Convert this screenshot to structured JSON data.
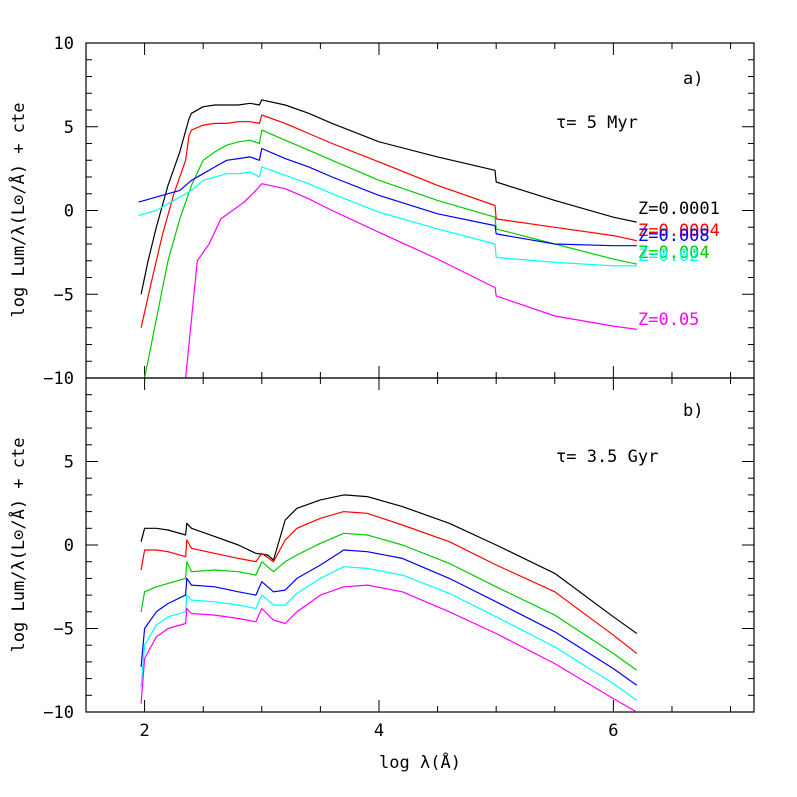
{
  "chart_data": {
    "type": "line",
    "xlabel": "log λ(Å)",
    "ylabel": "log Lum/λ(L⊙/Å) + cte",
    "xlim": [
      1.5,
      7.2
    ],
    "x_ticks": [
      2,
      4,
      6
    ],
    "y_ticks": [
      -10,
      -5,
      0,
      5,
      10
    ],
    "colors": {
      "Z=0.0001": "#000000",
      "Z=0.0004": "#ff0000",
      "Z=0.004": "#00cc00",
      "Z=0.008": "#0000ff",
      "Z=0.02": "#00ffff",
      "Z=0.05": "#ff00ff"
    },
    "panels": [
      {
        "id": "a",
        "panel_label": "a)",
        "age_label": "τ= 5 Myr",
        "ylim": [
          -10,
          10
        ],
        "y_tick_labels": [
          "−10",
          "−5",
          "0",
          "5",
          "10"
        ],
        "series": [
          {
            "name": "Z=0.0001",
            "color": "#000000",
            "label": "Z=0.0001",
            "x": [
              1.97,
              2.03,
              2.1,
              2.2,
              2.3,
              2.38,
              2.4,
              2.5,
              2.6,
              2.7,
              2.8,
              2.9,
              2.98,
              3.0,
              3.2,
              3.4,
              3.6,
              4.0,
              4.5,
              4.99,
              5.0,
              5.5,
              6.0,
              6.2
            ],
            "y": [
              -5.0,
              -3.0,
              -1.0,
              1.5,
              3.5,
              5.5,
              5.8,
              6.2,
              6.3,
              6.3,
              6.3,
              6.4,
              6.3,
              6.6,
              6.3,
              5.8,
              5.2,
              4.1,
              3.2,
              2.4,
              1.7,
              0.6,
              -0.4,
              -0.7
            ]
          },
          {
            "name": "Z=0.0004",
            "color": "#ff0000",
            "label": "Z=0.0004",
            "x": [
              1.97,
              2.05,
              2.15,
              2.25,
              2.35,
              2.38,
              2.4,
              2.5,
              2.6,
              2.7,
              2.8,
              2.9,
              2.98,
              3.0,
              3.2,
              3.4,
              3.6,
              4.0,
              4.5,
              4.99,
              5.0,
              5.5,
              6.0,
              6.2
            ],
            "y": [
              -7.0,
              -4.5,
              -1.5,
              1.0,
              3.0,
              4.5,
              4.8,
              5.1,
              5.2,
              5.2,
              5.3,
              5.3,
              5.2,
              5.7,
              5.2,
              4.6,
              4.0,
              2.9,
              1.5,
              0.3,
              -0.5,
              -1.0,
              -1.5,
              -1.8
            ]
          },
          {
            "name": "Z=0.004",
            "color": "#00cc00",
            "label": "Z=0.004",
            "x": [
              2.0,
              2.1,
              2.2,
              2.3,
              2.4,
              2.5,
              2.6,
              2.7,
              2.8,
              2.9,
              2.98,
              3.0,
              3.2,
              3.4,
              3.6,
              4.0,
              4.5,
              4.99,
              5.0,
              5.5,
              6.0,
              6.2
            ],
            "y": [
              -10.0,
              -6.5,
              -3.0,
              -0.5,
              1.5,
              3.0,
              3.5,
              3.9,
              4.1,
              4.2,
              4.0,
              4.8,
              4.2,
              3.6,
              3.0,
              1.8,
              0.6,
              -0.4,
              -1.1,
              -2.0,
              -2.9,
              -3.2
            ]
          },
          {
            "name": "Z=0.008",
            "color": "#0000ff",
            "label": "Z=0.008",
            "x": [
              1.95,
              2.1,
              2.2,
              2.3,
              2.4,
              2.5,
              2.6,
              2.7,
              2.8,
              2.9,
              2.98,
              3.0,
              3.2,
              3.4,
              3.6,
              4.0,
              4.5,
              4.99,
              5.0,
              5.5,
              6.0,
              6.2
            ],
            "y": [
              0.5,
              0.8,
              1.0,
              1.2,
              1.8,
              2.2,
              2.6,
              3.0,
              3.1,
              3.2,
              3.0,
              3.7,
              3.1,
              2.6,
              2.0,
              0.9,
              -0.2,
              -0.9,
              -1.4,
              -2.0,
              -2.1,
              -2.1
            ]
          },
          {
            "name": "Z=0.02",
            "color": "#00ffff",
            "label": "Z=0.02",
            "x": [
              1.95,
              2.0,
              2.1,
              2.2,
              2.3,
              2.4,
              2.5,
              2.6,
              2.7,
              2.8,
              2.9,
              2.98,
              3.0,
              3.2,
              3.4,
              3.6,
              4.0,
              4.5,
              4.99,
              5.0,
              5.5,
              6.0,
              6.2
            ],
            "y": [
              -0.3,
              -0.2,
              0.0,
              0.4,
              0.8,
              1.2,
              1.8,
              2.0,
              2.2,
              2.2,
              2.3,
              2.0,
              2.6,
              2.1,
              1.6,
              1.0,
              -0.1,
              -1.1,
              -2.0,
              -2.8,
              -3.1,
              -3.3,
              -3.3
            ]
          },
          {
            "name": "Z=0.05",
            "color": "#ff00ff",
            "label": "Z=0.05",
            "x": [
              2.35,
              2.45,
              2.55,
              2.65,
              2.75,
              2.85,
              2.95,
              3.0,
              3.2,
              3.4,
              3.6,
              4.0,
              4.5,
              4.99,
              5.0,
              5.5,
              6.0,
              6.2
            ],
            "y": [
              -10.0,
              -3.0,
              -2.0,
              -0.5,
              0.0,
              0.5,
              1.2,
              1.6,
              1.3,
              0.7,
              0.0,
              -1.3,
              -2.9,
              -4.6,
              -5.1,
              -6.3,
              -6.9,
              -7.1
            ]
          }
        ]
      },
      {
        "id": "b",
        "panel_label": "b)",
        "age_label": "τ= 3.5 Gyr",
        "ylim": [
          -10,
          10
        ],
        "y_tick_labels": [
          "−10",
          "−5",
          "0",
          "5",
          ""
        ],
        "series": [
          {
            "name": "Z=0.0001",
            "color": "#000000",
            "x": [
              1.97,
              2.0,
              2.1,
              2.2,
              2.35,
              2.36,
              2.4,
              2.6,
              2.8,
              2.95,
              3.05,
              3.1,
              3.2,
              3.3,
              3.5,
              3.7,
              3.9,
              4.2,
              4.6,
              5.0,
              5.5,
              6.0,
              6.2
            ],
            "y": [
              0.2,
              1.0,
              1.0,
              0.9,
              0.6,
              1.3,
              1.0,
              0.5,
              0.0,
              -0.5,
              -0.6,
              -0.9,
              1.5,
              2.2,
              2.7,
              3.0,
              2.9,
              2.3,
              1.3,
              0.0,
              -1.7,
              -4.3,
              -5.3
            ]
          },
          {
            "name": "Z=0.0004",
            "color": "#ff0000",
            "x": [
              1.97,
              2.0,
              2.1,
              2.2,
              2.35,
              2.36,
              2.4,
              2.6,
              2.8,
              2.95,
              3.0,
              3.1,
              3.2,
              3.3,
              3.5,
              3.7,
              3.9,
              4.2,
              4.6,
              5.0,
              5.5,
              6.0,
              6.2
            ],
            "y": [
              -1.5,
              -0.3,
              -0.3,
              -0.4,
              -0.7,
              0.3,
              -0.2,
              -0.5,
              -0.8,
              -1.0,
              -0.5,
              -1.0,
              0.3,
              1.0,
              1.6,
              2.0,
              1.9,
              1.2,
              0.2,
              -1.2,
              -2.8,
              -5.4,
              -6.5
            ]
          },
          {
            "name": "Z=0.004",
            "color": "#00cc00",
            "x": [
              1.97,
              2.0,
              2.1,
              2.2,
              2.35,
              2.36,
              2.4,
              2.6,
              2.8,
              2.95,
              3.0,
              3.1,
              3.2,
              3.3,
              3.5,
              3.7,
              3.9,
              4.2,
              4.6,
              5.0,
              5.5,
              6.0,
              6.2
            ],
            "y": [
              -4.0,
              -2.8,
              -2.5,
              -2.3,
              -2.0,
              -1.0,
              -1.6,
              -1.5,
              -1.6,
              -1.8,
              -1.0,
              -1.6,
              -1.0,
              -0.6,
              0.1,
              0.7,
              0.6,
              0.0,
              -1.1,
              -2.5,
              -4.2,
              -6.5,
              -7.5
            ]
          },
          {
            "name": "Z=0.008",
            "color": "#0000ff",
            "x": [
              1.97,
              2.0,
              2.1,
              2.2,
              2.35,
              2.36,
              2.4,
              2.6,
              2.8,
              2.95,
              3.0,
              3.1,
              3.2,
              3.3,
              3.5,
              3.7,
              3.9,
              4.2,
              4.6,
              5.0,
              5.5,
              6.0,
              6.2
            ],
            "y": [
              -7.3,
              -5.0,
              -4.0,
              -3.5,
              -3.0,
              -2.0,
              -2.4,
              -2.5,
              -2.8,
              -3.0,
              -2.2,
              -2.8,
              -2.7,
              -2.0,
              -1.2,
              -0.3,
              -0.4,
              -0.8,
              -2.0,
              -3.4,
              -5.2,
              -7.4,
              -8.4
            ]
          },
          {
            "name": "Z=0.02",
            "color": "#00ffff",
            "x": [
              1.97,
              2.0,
              2.1,
              2.2,
              2.35,
              2.36,
              2.4,
              2.6,
              2.8,
              2.95,
              3.0,
              3.1,
              3.2,
              3.3,
              3.5,
              3.7,
              3.9,
              4.2,
              4.6,
              5.0,
              5.5,
              6.0,
              6.2
            ],
            "y": [
              -8.5,
              -6.0,
              -4.8,
              -4.3,
              -4.0,
              -3.0,
              -3.3,
              -3.4,
              -3.6,
              -3.8,
              -3.0,
              -3.6,
              -3.6,
              -2.9,
              -2.0,
              -1.3,
              -1.4,
              -1.8,
              -2.9,
              -4.3,
              -6.1,
              -8.3,
              -9.3
            ]
          },
          {
            "name": "Z=0.05",
            "color": "#ff00ff",
            "x": [
              1.97,
              2.0,
              2.1,
              2.2,
              2.35,
              2.36,
              2.4,
              2.6,
              2.8,
              2.95,
              3.0,
              3.1,
              3.2,
              3.3,
              3.5,
              3.7,
              3.9,
              4.2,
              4.6,
              5.0,
              5.5,
              6.0,
              6.2
            ],
            "y": [
              -9.5,
              -6.8,
              -5.5,
              -5.0,
              -4.7,
              -3.8,
              -4.1,
              -4.2,
              -4.4,
              -4.6,
              -3.8,
              -4.5,
              -4.7,
              -4.0,
              -3.0,
              -2.5,
              -2.4,
              -2.8,
              -4.0,
              -5.3,
              -7.1,
              -9.2,
              -10.0
            ]
          }
        ]
      }
    ]
  }
}
